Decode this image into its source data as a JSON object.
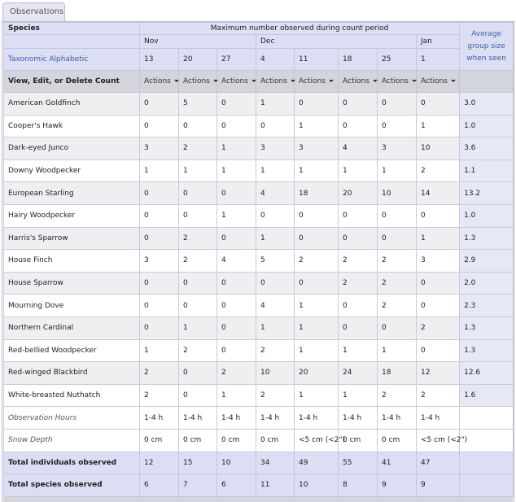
{
  "tab": {
    "label": "Observations"
  },
  "header": {
    "species_label": "Species",
    "period_label": "Maximum number observed during count period",
    "sort_label": "Taxonomic Alphabetic",
    "avg_label": "Average group size when seen",
    "months": [
      "Nov",
      "Dec",
      "Jan"
    ],
    "days": [
      "13",
      "20",
      "27",
      "4",
      "11",
      "18",
      "25",
      "1"
    ],
    "actions_row_label": "View, Edit, or Delete Count",
    "action_label": "Actions"
  },
  "rows": [
    {
      "species": "American Goldfinch",
      "counts": [
        "0",
        "5",
        "0",
        "1",
        "0",
        "0",
        "0",
        "0"
      ],
      "avg": "3.0"
    },
    {
      "species": "Cooper's Hawk",
      "counts": [
        "0",
        "0",
        "0",
        "0",
        "1",
        "0",
        "0",
        "1"
      ],
      "avg": "1.0"
    },
    {
      "species": "Dark-eyed Junco",
      "counts": [
        "3",
        "2",
        "1",
        "3",
        "3",
        "4",
        "3",
        "10"
      ],
      "avg": "3.6"
    },
    {
      "species": "Downy Woodpecker",
      "counts": [
        "1",
        "1",
        "1",
        "1",
        "1",
        "1",
        "1",
        "2"
      ],
      "avg": "1.1"
    },
    {
      "species": "European Starling",
      "counts": [
        "0",
        "0",
        "0",
        "4",
        "18",
        "20",
        "10",
        "14"
      ],
      "avg": "13.2"
    },
    {
      "species": "Hairy Woodpecker",
      "counts": [
        "0",
        "0",
        "1",
        "0",
        "0",
        "0",
        "0",
        "0"
      ],
      "avg": "1.0"
    },
    {
      "species": "Harris's Sparrow",
      "counts": [
        "0",
        "2",
        "0",
        "1",
        "0",
        "0",
        "0",
        "1"
      ],
      "avg": "1.3"
    },
    {
      "species": "House Finch",
      "counts": [
        "3",
        "2",
        "4",
        "5",
        "2",
        "2",
        "2",
        "3"
      ],
      "avg": "2.9"
    },
    {
      "species": "House Sparrow",
      "counts": [
        "0",
        "0",
        "0",
        "0",
        "0",
        "2",
        "2",
        "0"
      ],
      "avg": "2.0"
    },
    {
      "species": "Mourning Dove",
      "counts": [
        "0",
        "0",
        "0",
        "4",
        "1",
        "0",
        "2",
        "0"
      ],
      "avg": "2.3"
    },
    {
      "species": "Northern Cardinal",
      "counts": [
        "0",
        "1",
        "0",
        "1",
        "1",
        "0",
        "0",
        "2"
      ],
      "avg": "1.3"
    },
    {
      "species": "Red-bellied Woodpecker",
      "counts": [
        "1",
        "2",
        "0",
        "2",
        "1",
        "1",
        "1",
        "0"
      ],
      "avg": "1.3"
    },
    {
      "species": "Red-winged Blackbird",
      "counts": [
        "2",
        "0",
        "2",
        "10",
        "20",
        "24",
        "18",
        "12"
      ],
      "avg": "12.6"
    },
    {
      "species": "White-breasted Nuthatch",
      "counts": [
        "2",
        "0",
        "1",
        "2",
        "1",
        "1",
        "2",
        "2"
      ],
      "avg": "1.6"
    }
  ],
  "observation_hours": {
    "label": "Observation Hours",
    "values": [
      "1-4 h",
      "1-4 h",
      "1-4 h",
      "1-4 h",
      "1-4 h",
      "1-4 h",
      "1-4 h",
      "1-4 h"
    ]
  },
  "snow_depth": {
    "label": "Snow Depth",
    "values": [
      "0 cm",
      "0 cm",
      "0 cm",
      "0 cm",
      "<5 cm (<2\")",
      "0 cm",
      "0 cm",
      "<5 cm (<2\")"
    ]
  },
  "totals": {
    "individuals_label": "Total individuals observed",
    "individuals": [
      "12",
      "15",
      "10",
      "34",
      "49",
      "55",
      "41",
      "47"
    ],
    "species_label": "Total species observed",
    "species": [
      "6",
      "7",
      "6",
      "11",
      "10",
      "8",
      "9",
      "9"
    ]
  }
}
